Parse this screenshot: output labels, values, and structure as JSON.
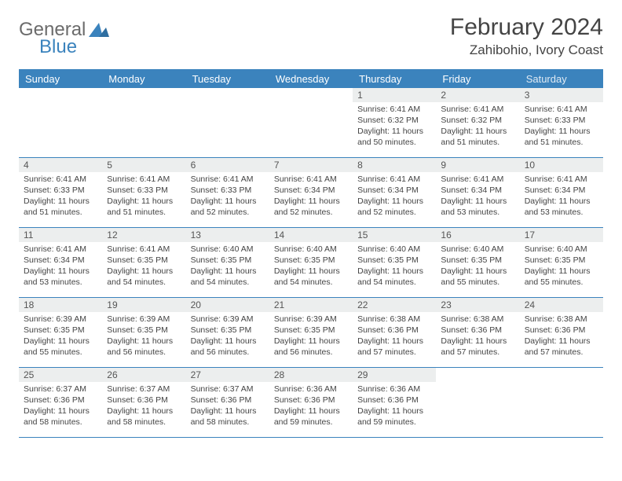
{
  "logo": {
    "general": "General",
    "blue": "Blue"
  },
  "title": "February 2024",
  "location": "Zahibohio, Ivory Coast",
  "colors": {
    "brand_blue": "#3b83bd",
    "header_bg": "#3b83bd",
    "header_text": "#ffffff",
    "daynum_bg": "#eceeee",
    "body_text": "#444444",
    "logo_gray": "#6b6b6b",
    "page_bg": "#ffffff"
  },
  "weekdays": [
    "Sunday",
    "Monday",
    "Tuesday",
    "Wednesday",
    "Thursday",
    "Friday",
    "Saturday"
  ],
  "weeks": [
    [
      null,
      null,
      null,
      null,
      {
        "n": "1",
        "sr": "Sunrise: 6:41 AM",
        "ss": "Sunset: 6:32 PM",
        "dl": "Daylight: 11 hours and 50 minutes."
      },
      {
        "n": "2",
        "sr": "Sunrise: 6:41 AM",
        "ss": "Sunset: 6:32 PM",
        "dl": "Daylight: 11 hours and 51 minutes."
      },
      {
        "n": "3",
        "sr": "Sunrise: 6:41 AM",
        "ss": "Sunset: 6:33 PM",
        "dl": "Daylight: 11 hours and 51 minutes."
      }
    ],
    [
      {
        "n": "4",
        "sr": "Sunrise: 6:41 AM",
        "ss": "Sunset: 6:33 PM",
        "dl": "Daylight: 11 hours and 51 minutes."
      },
      {
        "n": "5",
        "sr": "Sunrise: 6:41 AM",
        "ss": "Sunset: 6:33 PM",
        "dl": "Daylight: 11 hours and 51 minutes."
      },
      {
        "n": "6",
        "sr": "Sunrise: 6:41 AM",
        "ss": "Sunset: 6:33 PM",
        "dl": "Daylight: 11 hours and 52 minutes."
      },
      {
        "n": "7",
        "sr": "Sunrise: 6:41 AM",
        "ss": "Sunset: 6:34 PM",
        "dl": "Daylight: 11 hours and 52 minutes."
      },
      {
        "n": "8",
        "sr": "Sunrise: 6:41 AM",
        "ss": "Sunset: 6:34 PM",
        "dl": "Daylight: 11 hours and 52 minutes."
      },
      {
        "n": "9",
        "sr": "Sunrise: 6:41 AM",
        "ss": "Sunset: 6:34 PM",
        "dl": "Daylight: 11 hours and 53 minutes."
      },
      {
        "n": "10",
        "sr": "Sunrise: 6:41 AM",
        "ss": "Sunset: 6:34 PM",
        "dl": "Daylight: 11 hours and 53 minutes."
      }
    ],
    [
      {
        "n": "11",
        "sr": "Sunrise: 6:41 AM",
        "ss": "Sunset: 6:34 PM",
        "dl": "Daylight: 11 hours and 53 minutes."
      },
      {
        "n": "12",
        "sr": "Sunrise: 6:41 AM",
        "ss": "Sunset: 6:35 PM",
        "dl": "Daylight: 11 hours and 54 minutes."
      },
      {
        "n": "13",
        "sr": "Sunrise: 6:40 AM",
        "ss": "Sunset: 6:35 PM",
        "dl": "Daylight: 11 hours and 54 minutes."
      },
      {
        "n": "14",
        "sr": "Sunrise: 6:40 AM",
        "ss": "Sunset: 6:35 PM",
        "dl": "Daylight: 11 hours and 54 minutes."
      },
      {
        "n": "15",
        "sr": "Sunrise: 6:40 AM",
        "ss": "Sunset: 6:35 PM",
        "dl": "Daylight: 11 hours and 54 minutes."
      },
      {
        "n": "16",
        "sr": "Sunrise: 6:40 AM",
        "ss": "Sunset: 6:35 PM",
        "dl": "Daylight: 11 hours and 55 minutes."
      },
      {
        "n": "17",
        "sr": "Sunrise: 6:40 AM",
        "ss": "Sunset: 6:35 PM",
        "dl": "Daylight: 11 hours and 55 minutes."
      }
    ],
    [
      {
        "n": "18",
        "sr": "Sunrise: 6:39 AM",
        "ss": "Sunset: 6:35 PM",
        "dl": "Daylight: 11 hours and 55 minutes."
      },
      {
        "n": "19",
        "sr": "Sunrise: 6:39 AM",
        "ss": "Sunset: 6:35 PM",
        "dl": "Daylight: 11 hours and 56 minutes."
      },
      {
        "n": "20",
        "sr": "Sunrise: 6:39 AM",
        "ss": "Sunset: 6:35 PM",
        "dl": "Daylight: 11 hours and 56 minutes."
      },
      {
        "n": "21",
        "sr": "Sunrise: 6:39 AM",
        "ss": "Sunset: 6:35 PM",
        "dl": "Daylight: 11 hours and 56 minutes."
      },
      {
        "n": "22",
        "sr": "Sunrise: 6:38 AM",
        "ss": "Sunset: 6:36 PM",
        "dl": "Daylight: 11 hours and 57 minutes."
      },
      {
        "n": "23",
        "sr": "Sunrise: 6:38 AM",
        "ss": "Sunset: 6:36 PM",
        "dl": "Daylight: 11 hours and 57 minutes."
      },
      {
        "n": "24",
        "sr": "Sunrise: 6:38 AM",
        "ss": "Sunset: 6:36 PM",
        "dl": "Daylight: 11 hours and 57 minutes."
      }
    ],
    [
      {
        "n": "25",
        "sr": "Sunrise: 6:37 AM",
        "ss": "Sunset: 6:36 PM",
        "dl": "Daylight: 11 hours and 58 minutes."
      },
      {
        "n": "26",
        "sr": "Sunrise: 6:37 AM",
        "ss": "Sunset: 6:36 PM",
        "dl": "Daylight: 11 hours and 58 minutes."
      },
      {
        "n": "27",
        "sr": "Sunrise: 6:37 AM",
        "ss": "Sunset: 6:36 PM",
        "dl": "Daylight: 11 hours and 58 minutes."
      },
      {
        "n": "28",
        "sr": "Sunrise: 6:36 AM",
        "ss": "Sunset: 6:36 PM",
        "dl": "Daylight: 11 hours and 59 minutes."
      },
      {
        "n": "29",
        "sr": "Sunrise: 6:36 AM",
        "ss": "Sunset: 6:36 PM",
        "dl": "Daylight: 11 hours and 59 minutes."
      },
      null,
      null
    ]
  ]
}
